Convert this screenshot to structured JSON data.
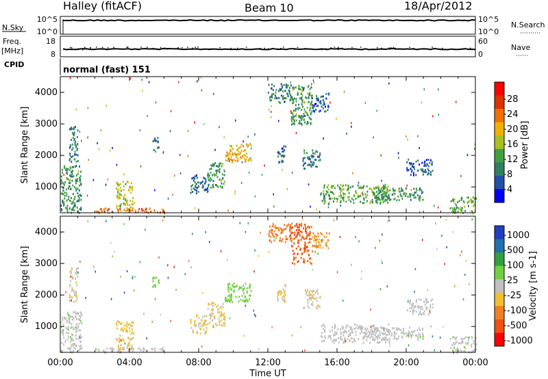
{
  "header": {
    "station": "Halley (fitACF)",
    "beam": "Beam 10",
    "date": "18/Apr/2012"
  },
  "summary_panels": {
    "nsky_label": "N.Sky",
    "nsky_ticks": [
      "10^5",
      "10^0"
    ],
    "nsearch_label": "N.Search",
    "freq_label_1": "Freq.",
    "freq_label_2": "[MHz]",
    "freq_ticks": [
      "18",
      "8"
    ],
    "nave_label": "Nave",
    "nave_ticks": [
      "60",
      "0"
    ],
    "cpid_label": "CPID",
    "cpid_value": "normal (fast) 151"
  },
  "colors": {
    "power_scale": [
      "#0000ff",
      "#2050a8",
      "#308060",
      "#40a040",
      "#a8c020",
      "#f0b000",
      "#f07000",
      "#e03000",
      "#ff0000"
    ],
    "velocity_scale": [
      "#2040c0",
      "#2070b0",
      "#30a040",
      "#70d040",
      "#c0c0c0",
      "#f0c030",
      "#f08020",
      "#f05010",
      "#ff0000"
    ]
  },
  "chart_data": [
    {
      "type": "heatmap",
      "name": "power",
      "title": "",
      "xlabel": "Time UT",
      "ylabel": "Slant Range [km]",
      "x_ticks": [
        "00:00",
        "04:00",
        "08:00",
        "12:00",
        "16:00",
        "20:00",
        "00:00"
      ],
      "y_ticks": [
        "1000",
        "2000",
        "3000",
        "4000"
      ],
      "colorbar_label": "Power [dB]",
      "colorbar_ticks": [
        "4",
        "8",
        "12",
        "16",
        "20",
        "24",
        "28"
      ],
      "clim": [
        0,
        30
      ],
      "xlim_hours": [
        0,
        24
      ],
      "ylim_km": [
        180,
        4500
      ],
      "regions": [
        {
          "t": [
            0.0,
            1.2
          ],
          "r": [
            200,
            1700
          ],
          "v": 10
        },
        {
          "t": [
            0.5,
            1.0
          ],
          "r": [
            1800,
            3000
          ],
          "v": 8
        },
        {
          "t": [
            3.2,
            4.2
          ],
          "r": [
            300,
            1200
          ],
          "v": 16
        },
        {
          "t": [
            2.0,
            6.0
          ],
          "r": [
            200,
            350
          ],
          "v": 22
        },
        {
          "t": [
            5.3,
            5.7
          ],
          "r": [
            2200,
            2600
          ],
          "v": 6
        },
        {
          "t": [
            7.5,
            8.5
          ],
          "r": [
            800,
            1400
          ],
          "v": 7
        },
        {
          "t": [
            8.5,
            9.5
          ],
          "r": [
            1000,
            1800
          ],
          "v": 10
        },
        {
          "t": [
            9.5,
            11.0
          ],
          "r": [
            1800,
            2400
          ],
          "v": 18
        },
        {
          "t": [
            12.0,
            13.3
          ],
          "r": [
            3700,
            4300
          ],
          "v": 8
        },
        {
          "t": [
            13.3,
            14.5
          ],
          "r": [
            3000,
            4300
          ],
          "v": 10
        },
        {
          "t": [
            14.5,
            15.5
          ],
          "r": [
            3400,
            4000
          ],
          "v": 6
        },
        {
          "t": [
            12.5,
            13.0
          ],
          "r": [
            1800,
            2400
          ],
          "v": 6
        },
        {
          "t": [
            14.0,
            15.0
          ],
          "r": [
            1600,
            2200
          ],
          "v": 8
        },
        {
          "t": [
            15.0,
            19.0
          ],
          "r": [
            500,
            1100
          ],
          "v": 12
        },
        {
          "t": [
            18.0,
            21.0
          ],
          "r": [
            600,
            1000
          ],
          "v": 10
        },
        {
          "t": [
            20.0,
            21.5
          ],
          "r": [
            1400,
            1900
          ],
          "v": 6
        },
        {
          "t": [
            22.5,
            24.0
          ],
          "r": [
            200,
            700
          ],
          "v": 12
        }
      ]
    },
    {
      "type": "heatmap",
      "name": "velocity",
      "title": "",
      "xlabel": "Time UT",
      "ylabel": "Slant Range [km]",
      "x_ticks": [
        "00:00",
        "04:00",
        "08:00",
        "12:00",
        "16:00",
        "20:00",
        "00:00"
      ],
      "y_ticks": [
        "1000",
        "2000",
        "3000",
        "4000"
      ],
      "colorbar_label": "Velocity [m s-1]",
      "colorbar_ticks": [
        "1000",
        "500",
        "100",
        "25",
        "-25",
        "-100",
        "-500",
        "-1000"
      ],
      "clim": [
        -1200,
        1200
      ],
      "xlim_hours": [
        0,
        24
      ],
      "ylim_km": [
        180,
        4500
      ],
      "regions": [
        {
          "t": [
            0.0,
            1.2
          ],
          "r": [
            200,
            1500
          ],
          "v": 60
        },
        {
          "t": [
            0.5,
            1.0
          ],
          "r": [
            1800,
            2900
          ],
          "v": -100
        },
        {
          "t": [
            3.2,
            4.2
          ],
          "r": [
            300,
            1200
          ],
          "v": -200
        },
        {
          "t": [
            2.0,
            6.0
          ],
          "r": [
            200,
            350
          ],
          "v": 40
        },
        {
          "t": [
            5.3,
            5.7
          ],
          "r": [
            2200,
            2600
          ],
          "v": 200
        },
        {
          "t": [
            7.5,
            8.5
          ],
          "r": [
            800,
            1400
          ],
          "v": -150
        },
        {
          "t": [
            8.5,
            9.5
          ],
          "r": [
            1000,
            1800
          ],
          "v": -150
        },
        {
          "t": [
            9.5,
            11.0
          ],
          "r": [
            1800,
            2400
          ],
          "v": 300
        },
        {
          "t": [
            12.0,
            13.3
          ],
          "r": [
            3700,
            4300
          ],
          "v": -600
        },
        {
          "t": [
            13.3,
            14.5
          ],
          "r": [
            3000,
            4300
          ],
          "v": -700
        },
        {
          "t": [
            14.5,
            15.5
          ],
          "r": [
            3400,
            4000
          ],
          "v": -400
        },
        {
          "t": [
            12.5,
            13.0
          ],
          "r": [
            1800,
            2400
          ],
          "v": -150
        },
        {
          "t": [
            14.0,
            15.0
          ],
          "r": [
            1600,
            2200
          ],
          "v": -100
        },
        {
          "t": [
            15.0,
            19.0
          ],
          "r": [
            500,
            1100
          ],
          "v": 0
        },
        {
          "t": [
            18.0,
            21.0
          ],
          "r": [
            600,
            1000
          ],
          "v": 50
        },
        {
          "t": [
            20.0,
            21.5
          ],
          "r": [
            1400,
            1900
          ],
          "v": 0
        },
        {
          "t": [
            22.5,
            24.0
          ],
          "r": [
            200,
            700
          ],
          "v": 60
        }
      ]
    }
  ]
}
